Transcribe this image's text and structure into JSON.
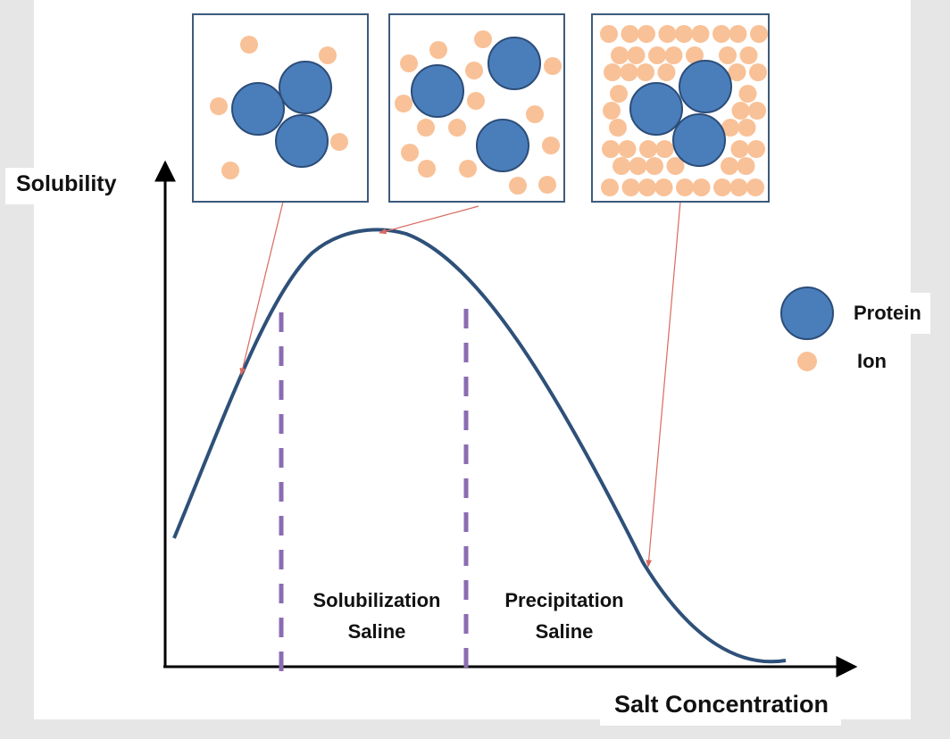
{
  "axes": {
    "y_label": "Solubility",
    "x_label": "Salt Concentration"
  },
  "regions": [
    {
      "line1": "Solubilization",
      "line2": "Saline"
    },
    {
      "line1": "Precipitation",
      "line2": "Saline"
    }
  ],
  "legend": {
    "protein": "Protein",
    "ion": "Ion"
  },
  "colors": {
    "curve": "#2e5079",
    "protein_fill": "#4a7ebb",
    "protein_stroke": "#2c4d78",
    "ion": "#f9c197",
    "divider": "#8b6cb3",
    "pointer": "#d9695f",
    "axis": "#000000",
    "box_border": "#3d5a7c"
  }
}
